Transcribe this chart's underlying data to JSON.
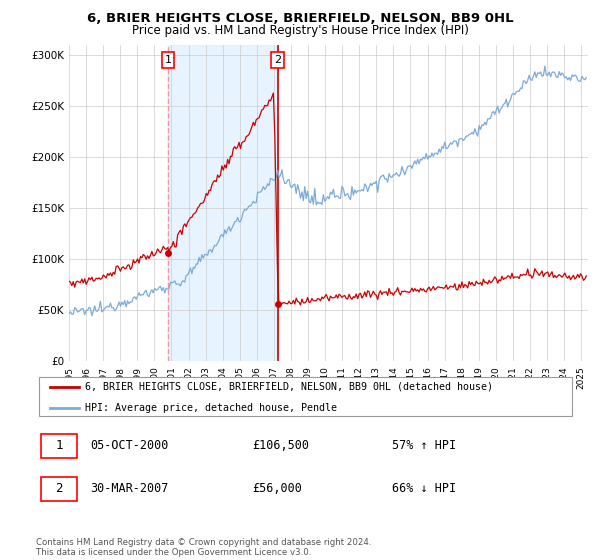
{
  "title": "6, BRIER HEIGHTS CLOSE, BRIERFIELD, NELSON, BB9 0HL",
  "subtitle": "Price paid vs. HM Land Registry's House Price Index (HPI)",
  "legend_line1": "6, BRIER HEIGHTS CLOSE, BRIERFIELD, NELSON, BB9 0HL (detached house)",
  "legend_line2": "HPI: Average price, detached house, Pendle",
  "annotation1_date": "05-OCT-2000",
  "annotation1_price": "£106,500",
  "annotation1_hpi": "57% ↑ HPI",
  "annotation2_date": "30-MAR-2007",
  "annotation2_price": "£56,000",
  "annotation2_hpi": "66% ↓ HPI",
  "footer": "Contains HM Land Registry data © Crown copyright and database right 2024.\nThis data is licensed under the Open Government Licence v3.0.",
  "hpi_color": "#7aabdb",
  "price_color": "#cc0000",
  "vline_color": "#ee9999",
  "shade_color": "#ddeeff",
  "yticks": [
    0,
    50000,
    100000,
    150000,
    200000,
    250000,
    300000
  ],
  "sale1_t": 2000.79,
  "sale1_v": 106500,
  "sale2_t": 2007.23,
  "sale2_v": 56000
}
